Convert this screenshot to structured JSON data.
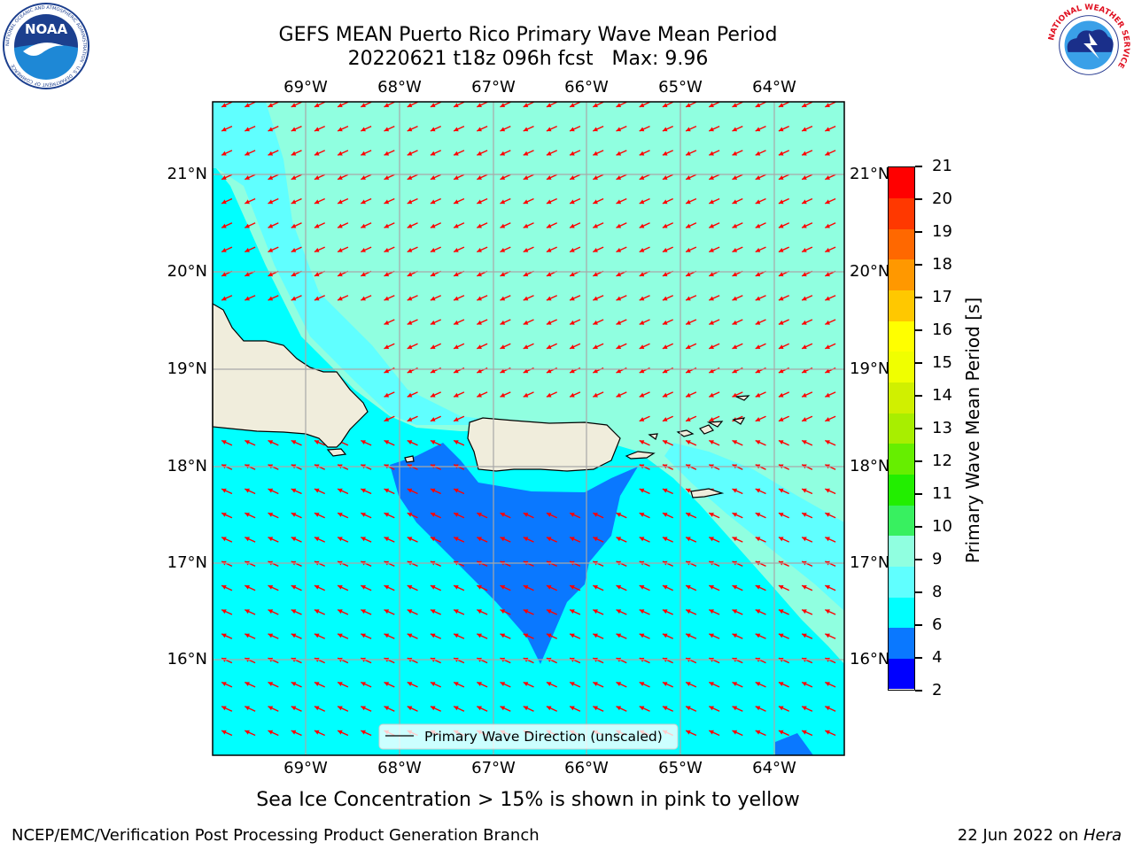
{
  "title": {
    "line1": "GEFS MEAN Puerto Rico Primary Wave Mean Period",
    "line2": "20220621 t18z 096h fcst   Max: 9.96"
  },
  "longitude_labels": [
    "69°W",
    "68°W",
    "67°W",
    "66°W",
    "65°W",
    "64°W"
  ],
  "latitude_labels": [
    "21°N",
    "20°N",
    "19°N",
    "18°N",
    "17°N",
    "16°N"
  ],
  "legend": {
    "label": "Primary Wave Direction (unscaled)"
  },
  "colorbar": {
    "title": "Primary Wave Mean Period [s]",
    "tick_labels": [
      "2",
      "4",
      "6",
      "8",
      "9",
      "10",
      "11",
      "12",
      "13",
      "14",
      "15",
      "16",
      "17",
      "18",
      "19",
      "20",
      "21"
    ],
    "colors": [
      "#0000ff",
      "#0a78ff",
      "#00ffff",
      "#60ffff",
      "#90ffe0",
      "#38f060",
      "#22ee00",
      "#66ee00",
      "#a8ee00",
      "#d0f000",
      "#f0ff00",
      "#ffff00",
      "#ffc800",
      "#ff9800",
      "#ff6800",
      "#ff3800",
      "#ff0000"
    ]
  },
  "map_colors": {
    "land": "#f0eddc",
    "band_6_8": "#00ffff",
    "band_8_9": "#60ffff",
    "band_9_10": "#90ffe0",
    "band_4_6": "#0a78ff",
    "arrow": "#ff0000"
  },
  "note": "Sea Ice Concentration > 15% is shown in pink to yellow",
  "footer": {
    "left": "NCEP/EMC/Verification Post Processing Product Generation Branch",
    "right_date": "22 Jun 2022 on ",
    "right_host": "Hera"
  },
  "logos": {
    "noaa": "NOAA",
    "noaa_ring": "NATIONAL OCEANIC AND ATMOSPHERIC ADMINISTRATION · U.S. DEPARTMENT OF COMMERCE",
    "nws_ring": "NATIONAL WEATHER SERVICE"
  }
}
